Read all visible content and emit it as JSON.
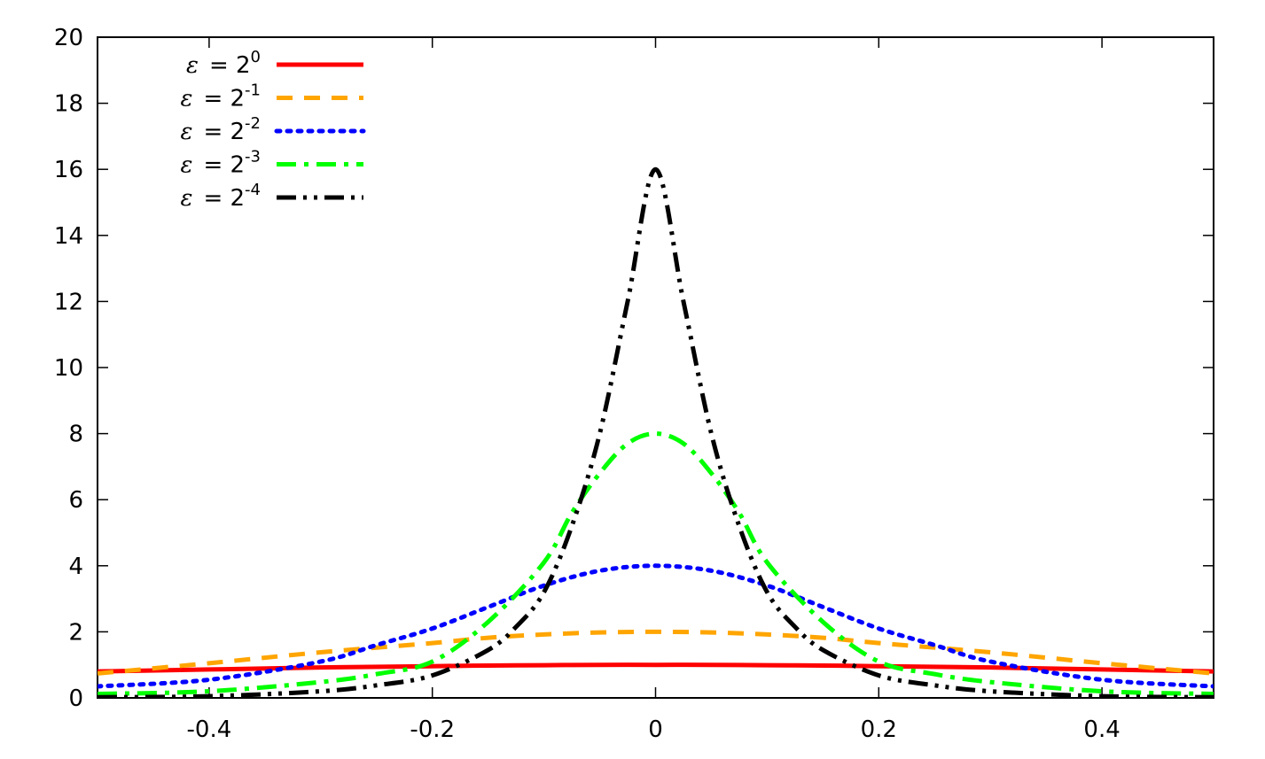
{
  "chart_data": {
    "type": "line",
    "title": "",
    "xlabel": "",
    "ylabel": "",
    "xlim": [
      -0.5,
      0.5
    ],
    "ylim": [
      0,
      20
    ],
    "x_ticks": [
      "-0.4",
      "-0.2",
      "0",
      "0.2",
      "0.4"
    ],
    "y_ticks": [
      "0",
      "2",
      "4",
      "6",
      "8",
      "10",
      "12",
      "14",
      "16",
      "18",
      "20"
    ],
    "grid": false,
    "legend_position": "top-left",
    "series": [
      {
        "legend_prefix": "ε",
        "legend_equals": "= 2",
        "legend_exp": "0",
        "color": "#ff0000",
        "dash": "solid",
        "x": [
          -0.5,
          -0.4,
          -0.3,
          -0.2,
          -0.15,
          -0.1,
          -0.05,
          0,
          0.05,
          0.1,
          0.15,
          0.2,
          0.3,
          0.4,
          0.5
        ],
        "y": [
          0.8,
          0.86,
          0.92,
          0.96,
          0.98,
          0.99,
          1.0,
          1.0,
          1.0,
          0.99,
          0.98,
          0.96,
          0.92,
          0.86,
          0.8
        ]
      },
      {
        "legend_prefix": "ε",
        "legend_equals": "= 2",
        "legend_exp": "-1",
        "color": "#ffa500",
        "dash": "dashed",
        "x": [
          -0.5,
          -0.4,
          -0.3,
          -0.2,
          -0.15,
          -0.1,
          -0.05,
          0,
          0.05,
          0.1,
          0.15,
          0.2,
          0.3,
          0.4,
          0.5
        ],
        "y": [
          0.74,
          1.05,
          1.38,
          1.66,
          1.82,
          1.92,
          1.98,
          2.0,
          1.98,
          1.92,
          1.82,
          1.66,
          1.38,
          1.05,
          0.74
        ]
      },
      {
        "legend_prefix": "ε",
        "legend_equals": "= 2",
        "legend_exp": "-2",
        "color": "#0000ff",
        "dash": "dotted",
        "x": [
          -0.5,
          -0.4,
          -0.3,
          -0.25,
          -0.2,
          -0.15,
          -0.1,
          -0.05,
          0,
          0.05,
          0.1,
          0.15,
          0.2,
          0.25,
          0.3,
          0.4,
          0.5
        ],
        "y": [
          0.35,
          0.55,
          1.1,
          1.6,
          2.1,
          2.75,
          3.4,
          3.85,
          4.0,
          3.85,
          3.4,
          2.75,
          2.1,
          1.6,
          1.1,
          0.55,
          0.35
        ]
      },
      {
        "legend_prefix": "ε",
        "legend_equals": "= 2",
        "legend_exp": "-3",
        "color": "#00ff00",
        "dash": "dashdot",
        "x": [
          -0.5,
          -0.4,
          -0.3,
          -0.25,
          -0.2,
          -0.15,
          -0.1,
          -0.075,
          -0.05,
          -0.025,
          0,
          0.025,
          0.05,
          0.075,
          0.1,
          0.15,
          0.2,
          0.25,
          0.3,
          0.4,
          0.5
        ],
        "y": [
          0.12,
          0.2,
          0.48,
          0.72,
          1.1,
          2.3,
          4.1,
          5.6,
          6.8,
          7.7,
          8.0,
          7.7,
          6.8,
          5.6,
          4.1,
          2.3,
          1.1,
          0.72,
          0.48,
          0.2,
          0.12
        ]
      },
      {
        "legend_prefix": "ε",
        "legend_equals": "= 2",
        "legend_exp": "-4",
        "color": "#000000",
        "dash": "dashdotdot",
        "x": [
          -0.5,
          -0.4,
          -0.3,
          -0.25,
          -0.2,
          -0.15,
          -0.125,
          -0.1,
          -0.075,
          -0.05,
          -0.025,
          0,
          0.025,
          0.05,
          0.075,
          0.1,
          0.125,
          0.15,
          0.2,
          0.25,
          0.3,
          0.4,
          0.5
        ],
        "y": [
          0.02,
          0.05,
          0.2,
          0.38,
          0.68,
          1.45,
          2.15,
          3.2,
          5.2,
          8.0,
          12.0,
          16.0,
          12.0,
          8.0,
          5.2,
          3.2,
          2.15,
          1.45,
          0.68,
          0.38,
          0.2,
          0.05,
          0.02
        ]
      }
    ]
  }
}
